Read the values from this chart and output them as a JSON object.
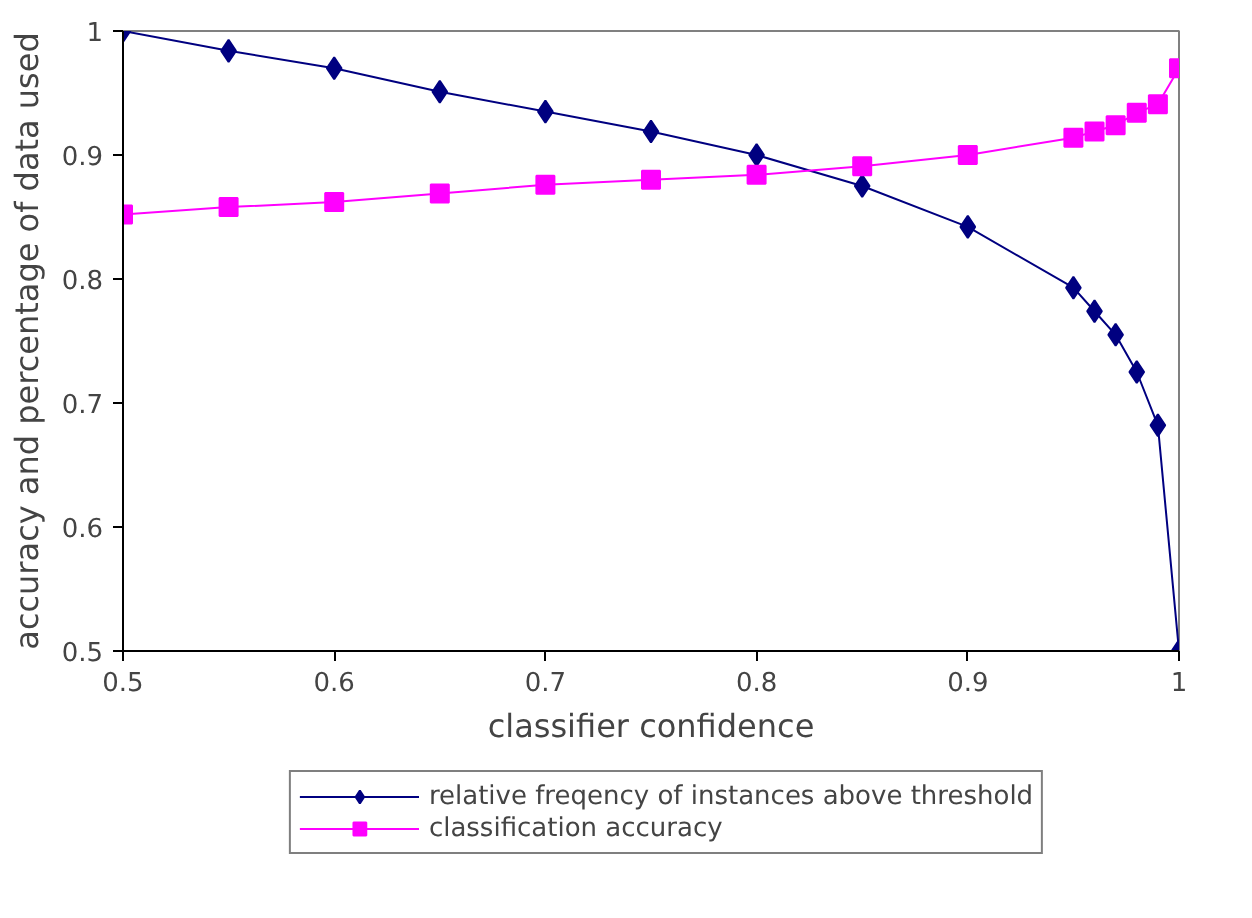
{
  "chart_data": {
    "type": "line",
    "xlabel": "classifier confidence",
    "ylabel": "accuracy and percentage of data used",
    "x": [
      0.5,
      0.55,
      0.6,
      0.65,
      0.7,
      0.75,
      0.8,
      0.85,
      0.9,
      0.95,
      0.96,
      0.97,
      0.98,
      0.99,
      1.0
    ],
    "series": [
      {
        "name": "relative freqency of instances above threshold",
        "color": "#000080",
        "marker": "diamond",
        "values": [
          1.0,
          0.984,
          0.97,
          0.951,
          0.935,
          0.919,
          0.9,
          0.875,
          0.842,
          0.793,
          0.774,
          0.755,
          0.725,
          0.682,
          0.5
        ]
      },
      {
        "name": "classification accuracy",
        "color": "#ff00ff",
        "marker": "square",
        "values": [
          0.852,
          0.858,
          0.862,
          0.869,
          0.876,
          0.88,
          0.884,
          0.891,
          0.9,
          0.914,
          0.919,
          0.924,
          0.934,
          0.941,
          0.97
        ]
      }
    ],
    "xlim": [
      0.5,
      1
    ],
    "xticks": [
      0.5,
      0.6,
      0.7,
      0.8,
      0.9,
      1
    ],
    "ylim": [
      0.5,
      1
    ],
    "yticks": [
      0.5,
      0.6,
      0.7,
      0.8,
      0.9,
      1
    ],
    "grid": false,
    "legend": "bottom",
    "line_style": "solid"
  }
}
